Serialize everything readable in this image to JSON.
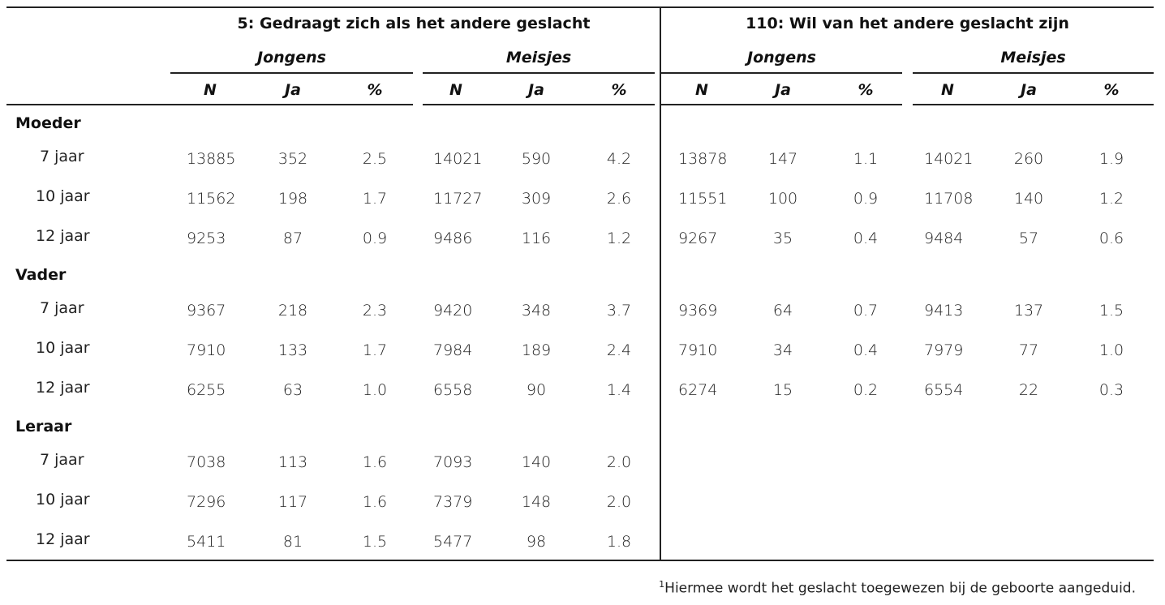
{
  "header": {
    "group1_title": "5: Gedraagt zich als het andere geslacht",
    "group2_title": "110: Wil van het andere geslacht zijn",
    "boys": "Jongens",
    "girls": "Meisjes",
    "col_n": "N",
    "col_ja": "Ja",
    "col_pct": "%"
  },
  "sections": [
    {
      "label": "Moeder",
      "rows": [
        {
          "age": "7 jaar",
          "g1": [
            "13885",
            "352",
            "2.5",
            "14021",
            "590",
            "4.2"
          ],
          "g2": [
            "13878",
            "147",
            "1.1",
            "14021",
            "260",
            "1.9"
          ]
        },
        {
          "age": "10 jaar",
          "g1": [
            "11562",
            "198",
            "1.7",
            "11727",
            "309",
            "2.6"
          ],
          "g2": [
            "11551",
            "100",
            "0.9",
            "11708",
            "140",
            "1.2"
          ]
        },
        {
          "age": "12 jaar",
          "g1": [
            "9253",
            "87",
            "0.9",
            "9486",
            "116",
            "1.2"
          ],
          "g2": [
            "9267",
            "35",
            "0.4",
            "9484",
            "57",
            "0.6"
          ]
        }
      ]
    },
    {
      "label": "Vader",
      "rows": [
        {
          "age": "7 jaar",
          "g1": [
            "9367",
            "218",
            "2.3",
            "9420",
            "348",
            "3.7"
          ],
          "g2": [
            "9369",
            "64",
            "0.7",
            "9413",
            "137",
            "1.5"
          ]
        },
        {
          "age": "10 jaar",
          "g1": [
            "7910",
            "133",
            "1.7",
            "7984",
            "189",
            "2.4"
          ],
          "g2": [
            "7910",
            "34",
            "0.4",
            "7979",
            "77",
            "1.0"
          ]
        },
        {
          "age": "12 jaar",
          "g1": [
            "6255",
            "63",
            "1.0",
            "6558",
            "90",
            "1.4"
          ],
          "g2": [
            "6274",
            "15",
            "0.2",
            "6554",
            "22",
            "0.3"
          ]
        }
      ]
    },
    {
      "label": "Leraar",
      "rows": [
        {
          "age": "7 jaar",
          "g1": [
            "7038",
            "113",
            "1.6",
            "7093",
            "140",
            "2.0"
          ],
          "g2": []
        },
        {
          "age": "10 jaar",
          "g1": [
            "7296",
            "117",
            "1.6",
            "7379",
            "148",
            "2.0"
          ],
          "g2": []
        },
        {
          "age": "12 jaar",
          "g1": [
            "5411",
            "81",
            "1.5",
            "5477",
            "98",
            "1.8"
          ],
          "g2": []
        }
      ]
    }
  ],
  "footnote": {
    "mark": "1",
    "text": "Hiermee wordt het geslacht toegewezen bij de geboorte aangeduid."
  }
}
